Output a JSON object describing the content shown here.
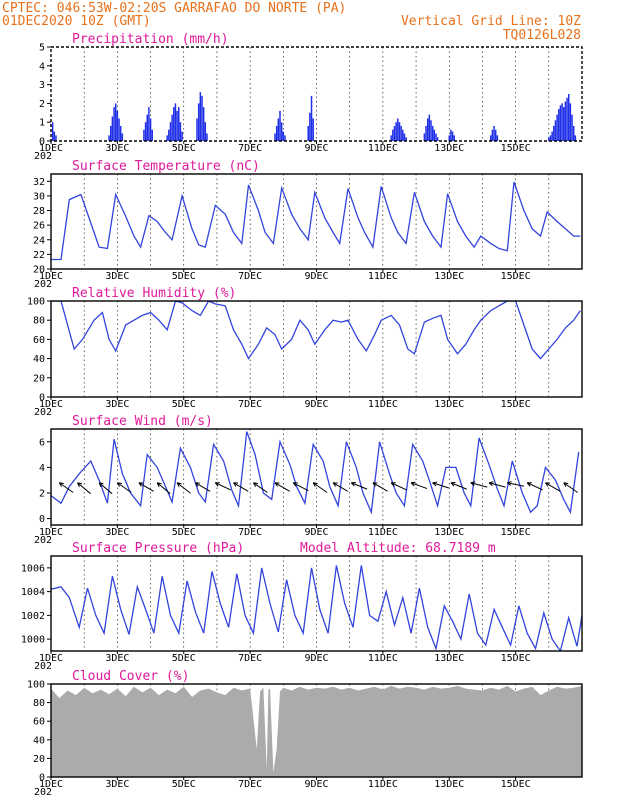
{
  "header": {
    "location_line": "CPTEC:   046:53W-02:20S  GARRAFAO DO NORTE (PA)",
    "date_line": "01DEC2020 10Z (GMT)",
    "grid_note": "Vertical Grid Line: 10Z",
    "model_id": "TQ0126L028"
  },
  "x_axis": {
    "days": 16,
    "tick_labels": [
      "1DEC",
      "3DEC",
      "5DEC",
      "7DEC",
      "9DEC",
      "11DEC",
      "13DEC",
      "15DEC"
    ],
    "tick_days": [
      0,
      2,
      4,
      6,
      8,
      10,
      12,
      14
    ],
    "year_stub": "202"
  },
  "chart_data": [
    {
      "id": "precip",
      "type": "bar",
      "title": "Precipitation (mm/h)",
      "ylim": [
        0,
        5
      ],
      "yticks": [
        0,
        1,
        2,
        3,
        4,
        5
      ],
      "color": "#1f2fe8",
      "x_unit": "days since 01DEC 10Z",
      "x": [
        0.05,
        0.1,
        0.15,
        1.75,
        1.8,
        1.85,
        1.9,
        1.95,
        2.0,
        2.05,
        2.1,
        2.15,
        2.8,
        2.85,
        2.9,
        2.95,
        3.0,
        3.05,
        3.5,
        3.55,
        3.6,
        3.65,
        3.7,
        3.75,
        3.8,
        3.85,
        3.9,
        3.95,
        4.4,
        4.45,
        4.5,
        4.55,
        4.6,
        4.65,
        4.7,
        6.75,
        6.8,
        6.85,
        6.9,
        6.95,
        7.0,
        7.05,
        7.75,
        7.8,
        7.85,
        7.9,
        10.25,
        10.3,
        10.35,
        10.4,
        10.45,
        10.5,
        10.55,
        10.6,
        10.65,
        10.7,
        11.25,
        11.3,
        11.35,
        11.4,
        11.45,
        11.5,
        11.55,
        11.6,
        11.65,
        12.0,
        12.05,
        12.1,
        12.15,
        13.25,
        13.3,
        13.35,
        13.4,
        13.45,
        15.0,
        15.05,
        15.1,
        15.15,
        15.2,
        15.25,
        15.3,
        15.35,
        15.4,
        15.45,
        15.5,
        15.55,
        15.6,
        15.65,
        15.7,
        15.75,
        15.8
      ],
      "values": [
        1.0,
        0.5,
        0.3,
        0.3,
        0.8,
        1.3,
        1.8,
        2.0,
        1.6,
        1.2,
        0.8,
        0.4,
        0.6,
        1.0,
        1.4,
        1.8,
        1.2,
        0.6,
        0.3,
        0.6,
        1.0,
        1.4,
        1.8,
        2.0,
        1.6,
        1.8,
        1.0,
        0.5,
        1.2,
        2.0,
        2.6,
        2.4,
        1.8,
        1.0,
        0.4,
        0.4,
        0.8,
        1.2,
        1.6,
        1.0,
        0.5,
        0.3,
        0.8,
        1.5,
        2.4,
        1.2,
        0.3,
        0.6,
        0.8,
        1.0,
        1.2,
        1.0,
        0.8,
        0.6,
        0.4,
        0.2,
        0.4,
        0.8,
        1.2,
        1.4,
        1.1,
        0.8,
        0.6,
        0.4,
        0.2,
        0.3,
        0.6,
        0.5,
        0.3,
        0.3,
        0.6,
        0.8,
        0.6,
        0.3,
        0.2,
        0.3,
        0.5,
        0.8,
        1.1,
        1.4,
        1.7,
        1.9,
        2.0,
        1.8,
        2.1,
        2.3,
        2.5,
        2.0,
        1.4,
        0.8,
        0.3
      ]
    },
    {
      "id": "temperature",
      "type": "line",
      "title": "Surface Temperature (nC)",
      "ylim": [
        20,
        33
      ],
      "yticks": [
        20,
        22,
        24,
        26,
        28,
        30,
        32
      ],
      "color": "#3344dd",
      "x": [
        0,
        0.3,
        0.55,
        0.9,
        1.3,
        1.45,
        1.7,
        1.95,
        2.25,
        2.5,
        2.7,
        2.95,
        3.2,
        3.45,
        3.65,
        3.95,
        4.25,
        4.45,
        4.65,
        4.95,
        5.25,
        5.5,
        5.75,
        5.95,
        6.25,
        6.45,
        6.7,
        6.95,
        7.25,
        7.5,
        7.75,
        7.95,
        8.25,
        8.5,
        8.7,
        8.95,
        9.25,
        9.45,
        9.7,
        9.95,
        10.25,
        10.45,
        10.7,
        10.95,
        11.25,
        11.5,
        11.75,
        11.95,
        12.25,
        12.5,
        12.75,
        12.95,
        13.25,
        13.5,
        13.75,
        13.95,
        14.25,
        14.5,
        14.75,
        14.95,
        15.25,
        15.5,
        15.75,
        15.95
      ],
      "values": [
        21.3,
        21.3,
        29.5,
        30.2,
        25.0,
        23.0,
        22.8,
        30.2,
        27.2,
        24.5,
        23.0,
        27.3,
        26.5,
        25.0,
        24.0,
        30.0,
        25.5,
        23.3,
        23.0,
        28.7,
        27.5,
        25.0,
        23.5,
        31.5,
        28.0,
        25.0,
        23.5,
        31.1,
        27.5,
        25.5,
        24.0,
        30.5,
        27.0,
        25.0,
        23.5,
        31.0,
        27.0,
        25.0,
        23.0,
        31.3,
        27.0,
        25.0,
        23.5,
        30.5,
        26.5,
        24.5,
        23.0,
        30.3,
        26.5,
        24.5,
        23.0,
        24.5,
        23.5,
        22.8,
        22.5,
        31.9,
        28.0,
        25.5,
        24.5,
        27.8,
        26.5,
        25.5,
        24.5,
        24.5
      ]
    },
    {
      "id": "humidity",
      "type": "line",
      "title": "Relative Humidity (%)",
      "ylim": [
        0,
        100
      ],
      "yticks": [
        0,
        20,
        40,
        60,
        80,
        100
      ],
      "color": "#3344dd",
      "x": [
        0,
        0.3,
        0.5,
        0.7,
        0.95,
        1.3,
        1.55,
        1.75,
        1.95,
        2.25,
        2.5,
        2.75,
        3.0,
        3.25,
        3.5,
        3.75,
        3.95,
        4.25,
        4.5,
        4.75,
        4.95,
        5.25,
        5.5,
        5.75,
        5.95,
        6.25,
        6.5,
        6.75,
        6.95,
        7.25,
        7.5,
        7.75,
        7.95,
        8.25,
        8.5,
        8.75,
        8.95,
        9.25,
        9.5,
        9.75,
        9.95,
        10.25,
        10.5,
        10.75,
        10.95,
        11.25,
        11.5,
        11.75,
        11.95,
        12.25,
        12.5,
        12.75,
        12.95,
        13.25,
        13.5,
        13.75,
        14.0,
        14.25,
        14.5,
        14.75,
        15.0,
        15.25,
        15.5,
        15.75,
        15.95
      ],
      "values": [
        100,
        100,
        75,
        50,
        60,
        80,
        88,
        60,
        48,
        75,
        80,
        85,
        88,
        80,
        70,
        100,
        98,
        90,
        85,
        100,
        97,
        95,
        70,
        55,
        40,
        55,
        72,
        65,
        50,
        60,
        80,
        70,
        55,
        70,
        80,
        78,
        80,
        60,
        48,
        65,
        80,
        85,
        75,
        50,
        45,
        78,
        82,
        85,
        60,
        45,
        55,
        70,
        80,
        90,
        95,
        100,
        100,
        75,
        50,
        40,
        50,
        60,
        72,
        80,
        90
      ]
    },
    {
      "id": "wind",
      "type": "line",
      "title": "Surface Wind (m/s)",
      "ylim": [
        -0.5,
        7
      ],
      "yticks": [
        0,
        2,
        4,
        6
      ],
      "color": "#3344dd",
      "x": [
        0,
        0.3,
        0.55,
        0.85,
        1.2,
        1.45,
        1.7,
        1.9,
        2.15,
        2.4,
        2.7,
        2.9,
        3.2,
        3.45,
        3.65,
        3.9,
        4.2,
        4.45,
        4.65,
        4.9,
        5.2,
        5.45,
        5.65,
        5.9,
        6.15,
        6.4,
        6.65,
        6.9,
        7.2,
        7.4,
        7.65,
        7.9,
        8.2,
        8.4,
        8.65,
        8.9,
        9.2,
        9.4,
        9.65,
        9.9,
        10.2,
        10.4,
        10.65,
        10.9,
        11.2,
        11.4,
        11.65,
        11.9,
        12.2,
        12.45,
        12.65,
        12.9,
        13.2,
        13.45,
        13.65,
        13.9,
        14.2,
        14.45,
        14.65,
        14.9,
        15.2,
        15.45,
        15.65,
        15.9
      ],
      "values": [
        1.8,
        1.2,
        2.5,
        3.5,
        4.5,
        3.0,
        1.2,
        6.2,
        3.5,
        2.0,
        1.0,
        5.0,
        4.0,
        2.5,
        1.3,
        5.5,
        4.0,
        2.0,
        1.3,
        5.8,
        4.5,
        2.2,
        1.0,
        6.8,
        5.0,
        2.0,
        1.5,
        6.0,
        4.2,
        2.5,
        1.2,
        5.8,
        4.5,
        2.5,
        1.0,
        6.0,
        4.0,
        2.0,
        0.5,
        6.0,
        3.5,
        2.0,
        1.0,
        5.8,
        4.5,
        3.0,
        1.0,
        4.0,
        4.0,
        2.0,
        1.0,
        6.3,
        4.2,
        2.3,
        1.0,
        4.5,
        2.0,
        0.5,
        1.0,
        4.0,
        3.0,
        1.5,
        0.5,
        5.2
      ]
    },
    {
      "id": "pressure",
      "type": "line",
      "title": "Surface Pressure (hPa)",
      "annotation": "Model Altitude: 68.7189 m",
      "ylim": [
        999,
        1007
      ],
      "yticks": [
        1000,
        1002,
        1004,
        1006
      ],
      "color": "#3344dd",
      "x": [
        0,
        0.3,
        0.55,
        0.85,
        1.1,
        1.35,
        1.6,
        1.85,
        2.1,
        2.35,
        2.6,
        2.85,
        3.1,
        3.35,
        3.6,
        3.85,
        4.1,
        4.35,
        4.6,
        4.85,
        5.1,
        5.35,
        5.6,
        5.85,
        6.1,
        6.35,
        6.6,
        6.85,
        7.1,
        7.35,
        7.6,
        7.85,
        8.1,
        8.35,
        8.6,
        8.85,
        9.1,
        9.35,
        9.6,
        9.85,
        10.1,
        10.35,
        10.6,
        10.85,
        11.1,
        11.35,
        11.6,
        11.85,
        12.1,
        12.35,
        12.6,
        12.85,
        13.1,
        13.35,
        13.6,
        13.85,
        14.1,
        14.35,
        14.6,
        14.85,
        15.1,
        15.35,
        15.6,
        15.85,
        16.0
      ],
      "values": [
        1004.2,
        1004.4,
        1003.5,
        1001.0,
        1004.3,
        1002.0,
        1000.5,
        1005.3,
        1002.5,
        1000.4,
        1004.4,
        1002.5,
        1000.5,
        1005.3,
        1002.0,
        1000.5,
        1004.9,
        1002.3,
        1000.5,
        1005.7,
        1003.0,
        1001.0,
        1005.5,
        1002.0,
        1000.5,
        1006.0,
        1003.0,
        1000.6,
        1005.0,
        1002.0,
        1000.5,
        1006.0,
        1002.5,
        1000.5,
        1006.2,
        1003.0,
        1001.0,
        1006.2,
        1002.0,
        1001.5,
        1004.0,
        1001.2,
        1003.5,
        1000.5,
        1004.3,
        1001.0,
        999.2,
        1002.8,
        1001.5,
        1000.0,
        1003.8,
        1000.5,
        999.5,
        1002.5,
        1001.0,
        999.5,
        1002.8,
        1000.5,
        999.2,
        1002.2,
        1000.0,
        999.0,
        1001.8,
        999.4,
        1002.0
      ]
    },
    {
      "id": "cloud",
      "type": "area",
      "title": "Cloud Cover (%)",
      "ylim": [
        0,
        100
      ],
      "yticks": [
        0,
        20,
        40,
        60,
        80,
        100
      ],
      "color": "#ababab",
      "x": [
        0,
        0.25,
        0.5,
        0.75,
        1.0,
        1.25,
        1.5,
        1.75,
        2.0,
        2.25,
        2.5,
        2.75,
        3.0,
        3.25,
        3.5,
        3.75,
        4.0,
        4.25,
        4.5,
        4.75,
        5.0,
        5.25,
        5.5,
        5.75,
        6.0,
        6.2,
        6.3,
        6.4,
        6.5,
        6.55,
        6.6,
        6.7,
        6.8,
        6.9,
        7.0,
        7.25,
        7.5,
        7.75,
        8.0,
        8.25,
        8.5,
        8.75,
        9.0,
        9.25,
        9.5,
        9.75,
        10.0,
        10.25,
        10.5,
        10.75,
        11.0,
        11.25,
        11.5,
        11.75,
        12.0,
        12.25,
        12.5,
        12.75,
        13.0,
        13.25,
        13.5,
        13.75,
        14.0,
        14.25,
        14.5,
        14.75,
        15.0,
        15.25,
        15.5,
        15.75,
        16.0
      ],
      "values": [
        95,
        85,
        93,
        88,
        96,
        90,
        94,
        89,
        95,
        87,
        97,
        91,
        96,
        88,
        94,
        90,
        97,
        86,
        93,
        95,
        91,
        88,
        96,
        93,
        95,
        30,
        92,
        96,
        8,
        94,
        95,
        5,
        30,
        92,
        96,
        93,
        97,
        94,
        96,
        95,
        97,
        94,
        96,
        93,
        95,
        97,
        94,
        98,
        95,
        97,
        96,
        94,
        97,
        95,
        96,
        98,
        95,
        94,
        93,
        96,
        94,
        98,
        92,
        95,
        97,
        88,
        93,
        97,
        95,
        96,
        98
      ]
    },
    {
      "id": "wind_vectors",
      "type": "scatter",
      "x": [
        0.25,
        0.8,
        1.45,
        2.0,
        2.65,
        3.2,
        3.8,
        4.35,
        4.95,
        5.5,
        6.1,
        6.75,
        7.3,
        7.9,
        8.5,
        9.05,
        9.7,
        10.25,
        10.85,
        11.5,
        12.05,
        12.65,
        13.2,
        13.75,
        14.35,
        14.9,
        15.45
      ],
      "direction_deg": [
        35,
        40,
        40,
        35,
        30,
        40,
        38,
        30,
        25,
        30,
        35,
        30,
        28,
        35,
        30,
        22,
        30,
        25,
        20,
        18,
        22,
        15,
        15,
        12,
        25,
        30,
        35
      ]
    }
  ]
}
